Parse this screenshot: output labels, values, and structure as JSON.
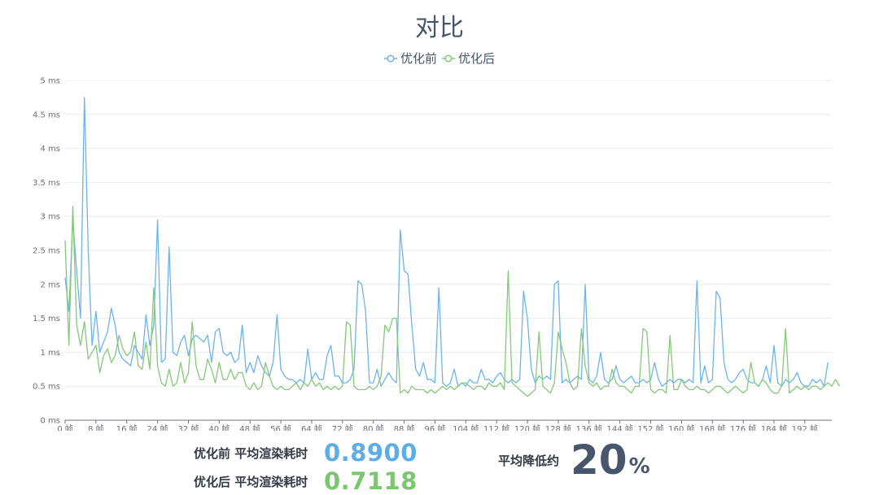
{
  "colors": {
    "before": "#6cb4ea",
    "after": "#86c87a",
    "title": "#47566a"
  },
  "chart_data": {
    "type": "line",
    "title": "对比",
    "legend": [
      "优化前",
      "优化后"
    ],
    "legend_position": "top-center",
    "ylim": [
      0,
      5
    ],
    "y_ticks": [
      "0 ms",
      "0.5 ms",
      "1 ms",
      "1.5 ms",
      "2 ms",
      "2.5 ms",
      "3 ms",
      "3.5 ms",
      "4 ms",
      "4.5 ms",
      "5 ms"
    ],
    "x_range": [
      0,
      199
    ],
    "x_ticks": [
      "0 帧",
      "8 帧",
      "16 帧",
      "24 帧",
      "32 帧",
      "40 帧",
      "48 帧",
      "56 帧",
      "64 帧",
      "72 帧",
      "80 帧",
      "88 帧",
      "96 帧",
      "104 帧",
      "112 帧",
      "120 帧",
      "128 帧",
      "136 帧",
      "144 帧",
      "152 帧",
      "160 帧",
      "168 帧",
      "176 帧",
      "184 帧",
      "192 帧"
    ],
    "grid": true,
    "series": [
      {
        "name": "优化前",
        "values": [
          2.1,
          1.6,
          2.95,
          2.2,
          1.5,
          4.75,
          2.5,
          1.1,
          1.6,
          1.0,
          1.15,
          1.3,
          1.65,
          1.4,
          1.0,
          0.9,
          0.85,
          0.8,
          1.1,
          1.0,
          0.9,
          1.55,
          1.1,
          1.4,
          2.95,
          0.85,
          0.9,
          2.55,
          1.0,
          0.95,
          1.15,
          1.25,
          0.95,
          1.2,
          1.25,
          1.2,
          1.15,
          1.25,
          0.85,
          1.3,
          1.35,
          1.0,
          0.95,
          1.0,
          0.85,
          0.9,
          1.4,
          0.7,
          0.85,
          0.7,
          0.95,
          0.8,
          0.7,
          0.65,
          0.85,
          1.55,
          0.75,
          0.65,
          0.6,
          0.6,
          0.55,
          0.6,
          0.55,
          1.05,
          0.6,
          0.7,
          0.6,
          0.6,
          0.95,
          1.1,
          0.65,
          0.65,
          0.55,
          0.55,
          0.6,
          0.75,
          2.05,
          2.0,
          1.6,
          0.55,
          0.55,
          0.75,
          0.5,
          0.6,
          0.7,
          0.6,
          0.55,
          2.8,
          2.2,
          2.15,
          1.4,
          0.75,
          0.65,
          0.85,
          0.6,
          0.6,
          0.55,
          1.95,
          0.55,
          0.5,
          0.55,
          0.75,
          0.5,
          0.55,
          0.5,
          0.6,
          0.55,
          0.55,
          0.75,
          0.6,
          0.6,
          0.55,
          0.65,
          0.7,
          0.6,
          0.55,
          0.6,
          0.55,
          0.6,
          1.9,
          1.5,
          0.75,
          0.55,
          0.65,
          0.6,
          0.65,
          0.6,
          2.0,
          2.05,
          0.55,
          0.6,
          0.55,
          0.6,
          0.65,
          0.6,
          2.0,
          0.6,
          0.55,
          0.65,
          1.0,
          0.6,
          0.55,
          0.6,
          0.8,
          0.6,
          0.55,
          0.6,
          0.65,
          0.55,
          0.55,
          0.6,
          0.55,
          0.6,
          0.85,
          0.6,
          0.5,
          0.55,
          0.6,
          0.55,
          0.6,
          0.6,
          0.55,
          0.6,
          0.55,
          2.05,
          0.55,
          0.8,
          0.55,
          0.6,
          1.9,
          1.8,
          0.85,
          0.6,
          0.55,
          0.6,
          0.7,
          0.75,
          0.6,
          0.55,
          0.55,
          0.5,
          0.6,
          0.8,
          0.55,
          1.1,
          0.55,
          0.5,
          0.6,
          0.55,
          0.6,
          0.7,
          0.55,
          0.5,
          0.5,
          0.6,
          0.55,
          0.6,
          0.5,
          0.85
        ]
      },
      {
        "name": "优化后",
        "values": [
          2.65,
          1.1,
          3.15,
          1.4,
          1.1,
          1.45,
          0.9,
          1.0,
          1.1,
          0.7,
          0.95,
          1.05,
          0.85,
          0.95,
          1.25,
          1.05,
          0.95,
          1.0,
          1.3,
          0.8,
          0.75,
          1.15,
          0.75,
          1.95,
          0.8,
          0.55,
          0.5,
          0.75,
          0.5,
          0.55,
          0.85,
          0.55,
          0.7,
          1.45,
          0.8,
          0.6,
          0.6,
          0.9,
          0.75,
          0.55,
          0.85,
          0.6,
          0.6,
          0.75,
          0.6,
          0.7,
          0.7,
          0.5,
          0.45,
          0.55,
          0.45,
          0.5,
          0.85,
          0.65,
          0.5,
          0.45,
          0.5,
          0.45,
          0.45,
          0.5,
          0.55,
          0.45,
          0.55,
          0.5,
          0.6,
          0.5,
          0.55,
          0.45,
          0.5,
          0.45,
          0.5,
          0.45,
          0.5,
          1.45,
          1.4,
          0.5,
          0.45,
          0.45,
          0.45,
          0.5,
          0.45,
          0.5,
          0.65,
          1.4,
          1.3,
          1.5,
          1.5,
          0.4,
          0.45,
          0.4,
          0.5,
          0.45,
          0.45,
          0.45,
          0.4,
          0.45,
          0.4,
          0.45,
          0.5,
          0.45,
          0.5,
          0.45,
          0.5,
          0.55,
          0.55,
          0.5,
          0.45,
          0.5,
          0.5,
          0.45,
          0.55,
          0.5,
          0.5,
          0.55,
          0.45,
          2.2,
          0.55,
          0.5,
          0.45,
          0.4,
          0.35,
          0.4,
          0.45,
          1.3,
          0.5,
          0.45,
          0.4,
          0.55,
          1.3,
          1.05,
          0.85,
          0.55,
          0.45,
          0.5,
          1.35,
          0.8,
          0.55,
          0.5,
          0.55,
          0.45,
          0.5,
          0.5,
          0.75,
          0.55,
          0.5,
          0.5,
          0.45,
          0.4,
          0.5,
          0.5,
          1.35,
          1.3,
          0.45,
          0.4,
          0.45,
          0.45,
          0.4,
          1.25,
          0.45,
          0.45,
          0.6,
          0.5,
          0.45,
          0.45,
          0.5,
          0.45,
          0.45,
          0.4,
          0.45,
          0.5,
          0.5,
          0.45,
          0.4,
          0.45,
          0.5,
          0.45,
          0.4,
          0.45,
          0.85,
          0.55,
          0.5,
          0.6,
          0.55,
          0.45,
          0.4,
          0.4,
          0.5,
          1.35,
          0.4,
          0.45,
          0.5,
          0.45,
          0.5,
          0.45,
          0.5,
          0.5,
          0.45,
          0.5,
          0.55,
          0.5,
          0.6,
          0.5
        ]
      }
    ]
  },
  "summary": {
    "before_label": "优化前 平均渲染耗时",
    "before_value": "0.8900",
    "after_label": "优化后 平均渲染耗时",
    "after_value": "0.7118",
    "reduction_label": "平均降低约",
    "reduction_value": "20",
    "reduction_unit": "%"
  }
}
